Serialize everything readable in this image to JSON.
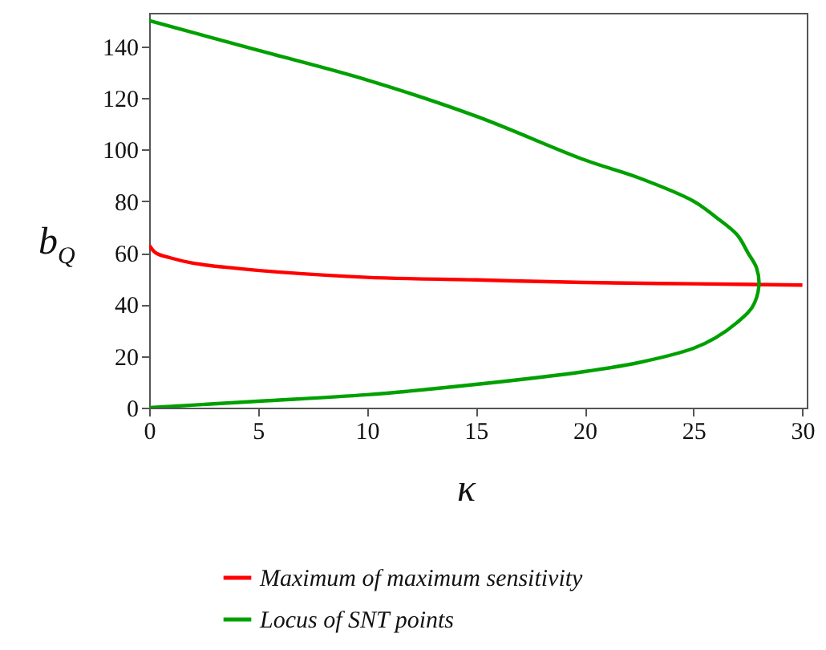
{
  "chart_data": {
    "type": "line",
    "xlabel": "κ",
    "ylabel": "b$_{Q}$",
    "xlim": [
      0,
      30.2
    ],
    "ylim": [
      0,
      153
    ],
    "xticks": [
      0,
      5,
      10,
      15,
      20,
      25,
      30
    ],
    "yticks": [
      0,
      20,
      40,
      60,
      80,
      100,
      120,
      140
    ],
    "legend": "bottom",
    "series": [
      {
        "name": "Maximum of maximum sensitivity",
        "color": "#ff0000",
        "x": [
          0,
          0.3,
          1,
          2,
          4,
          6,
          10,
          15,
          20,
          25,
          30
        ],
        "values": [
          63,
          60,
          58,
          56,
          54,
          52.5,
          50.5,
          49.5,
          48.5,
          48,
          47.5
        ]
      },
      {
        "name": "Locus of SNT points",
        "color": "#00a000",
        "x": [
          0,
          5,
          10,
          15,
          20,
          22.5,
          25,
          26,
          27,
          27.7,
          28,
          27.9,
          27.5,
          27,
          26,
          25,
          22.5,
          20,
          15,
          10,
          5,
          0
        ],
        "values": [
          0,
          2.5,
          5,
          9,
          14,
          17.5,
          23,
          27,
          33,
          39,
          47,
          54,
          60,
          67,
          74,
          80,
          89,
          96,
          113,
          127,
          138.5,
          150
        ]
      }
    ]
  }
}
